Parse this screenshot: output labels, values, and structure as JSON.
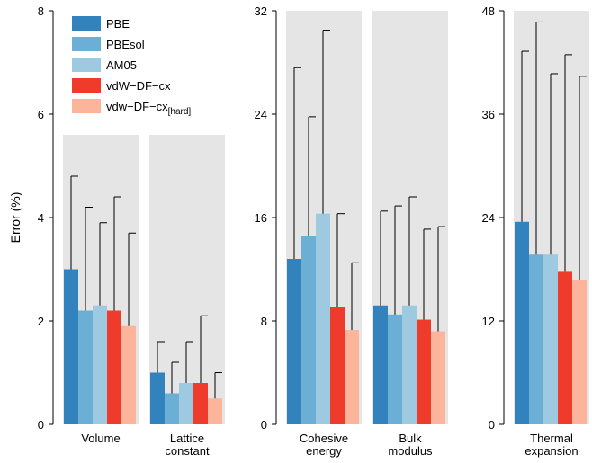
{
  "chart_data": {
    "type": "bar",
    "ylabel": "Error (%)",
    "legend": {
      "placement": "top-left",
      "entries": [
        {
          "label": "PBE",
          "sub": "",
          "color": "#3182bd"
        },
        {
          "label": "PBEsol",
          "sub": "",
          "color": "#6baed6"
        },
        {
          "label": "AM05",
          "sub": "",
          "color": "#9ecae1"
        },
        {
          "label": "vdW−DF−cx",
          "sub": "",
          "color": "#ee3b2c"
        },
        {
          "label": "vdw−DF−cx",
          "sub": "[hard]",
          "color": "#fcb49b"
        }
      ]
    },
    "panels": [
      {
        "ylim": [
          0,
          8
        ],
        "yticks": [
          "0",
          "2",
          "4",
          "6",
          "8"
        ],
        "groups": [
          {
            "label_lines": [
              "Volume"
            ],
            "values": [
              3.0,
              2.2,
              2.3,
              2.2,
              1.9
            ],
            "errors": [
              4.8,
              4.2,
              3.9,
              4.4,
              3.7
            ]
          },
          {
            "label_lines": [
              "Lattice",
              "constant"
            ],
            "values": [
              1.0,
              0.6,
              0.8,
              0.8,
              0.5
            ],
            "errors": [
              1.6,
              1.2,
              1.6,
              2.1,
              1.0
            ]
          }
        ]
      },
      {
        "ylim": [
          0,
          32
        ],
        "yticks": [
          "0",
          "8",
          "16",
          "24",
          "32"
        ],
        "groups": [
          {
            "label_lines": [
              "Cohesive",
              "energy"
            ],
            "values": [
              12.8,
              14.6,
              16.3,
              9.1,
              7.3
            ],
            "errors": [
              27.6,
              23.8,
              30.5,
              16.3,
              12.5
            ]
          },
          {
            "label_lines": [
              "Bulk",
              "modulus"
            ],
            "values": [
              9.2,
              8.5,
              9.2,
              8.1,
              7.2
            ],
            "errors": [
              16.5,
              16.9,
              17.6,
              15.1,
              15.3
            ]
          }
        ]
      },
      {
        "ylim": [
          0,
          48
        ],
        "yticks": [
          "0",
          "12",
          "24",
          "36",
          "48"
        ],
        "groups": [
          {
            "label_lines": [
              "Thermal",
              "expansion"
            ],
            "values": [
              23.5,
              19.7,
              19.7,
              17.8,
              16.8
            ],
            "errors": [
              43.3,
              46.7,
              40.7,
              42.9,
              40.4
            ]
          }
        ]
      }
    ],
    "colors": {
      "background_band": "#e5e5e5",
      "axis": "#000000",
      "errorbar": "#000000"
    },
    "grid": false
  }
}
